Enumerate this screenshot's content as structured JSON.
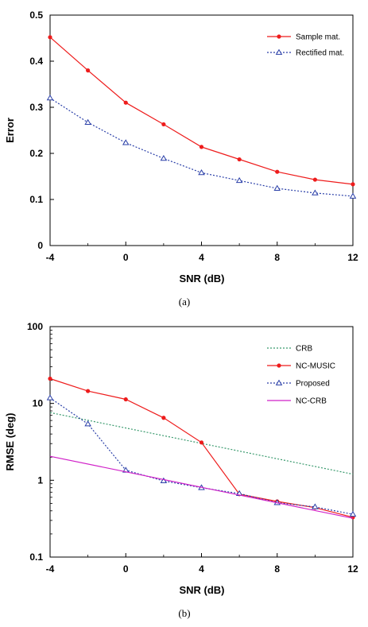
{
  "chart_data": [
    {
      "type": "line",
      "xlabel": "SNR (dB)",
      "ylabel": "Error",
      "caption": "(a)",
      "xlim": [
        -4,
        12
      ],
      "ylim": [
        0,
        0.5
      ],
      "xticks": [
        -4,
        0,
        4,
        8,
        12
      ],
      "yticks": [
        0,
        0.1,
        0.2,
        0.3,
        0.4,
        0.5
      ],
      "ytick_labels": [
        "0",
        "0.1",
        "0.2",
        "0.3",
        "0.4",
        "0.5"
      ],
      "legend_position": "top-right",
      "grid": false,
      "x": [
        -4,
        -2,
        0,
        2,
        4,
        6,
        8,
        10,
        12
      ],
      "series": [
        {
          "name": "Sample mat.",
          "color": "#ee1c1c",
          "style": "solid",
          "marker": "dot",
          "values": [
            0.452,
            0.38,
            0.31,
            0.263,
            0.214,
            0.187,
            0.16,
            0.143,
            0.133
          ]
        },
        {
          "name": "Rectified mat.",
          "color": "#2a3fa8",
          "style": "dotted",
          "marker": "triangle",
          "values": [
            0.32,
            0.267,
            0.223,
            0.189,
            0.158,
            0.141,
            0.124,
            0.114,
            0.107
          ]
        }
      ]
    },
    {
      "type": "line",
      "xlabel": "SNR (dB)",
      "ylabel": "RMSE (deg)",
      "caption": "(b)",
      "yscale": "log",
      "xlim": [
        -4,
        12
      ],
      "ylim": [
        0.1,
        100
      ],
      "xticks": [
        -4,
        0,
        4,
        8,
        12
      ],
      "yticks": [
        0.1,
        1,
        10,
        100
      ],
      "ytick_labels": [
        "0.1",
        "1",
        "10",
        "100"
      ],
      "legend_position": "top-right",
      "grid": false,
      "series": [
        {
          "name": "CRB",
          "color": "#3a9a6e",
          "style": "dotted",
          "marker": "none",
          "x": [
            -4,
            12
          ],
          "values": [
            7.6,
            1.2
          ]
        },
        {
          "name": "NC-MUSIC",
          "color": "#ee1c1c",
          "style": "solid",
          "marker": "dot",
          "x": [
            -4,
            -2,
            0,
            2,
            4,
            6,
            8,
            10,
            12
          ],
          "values": [
            21,
            14.5,
            11.3,
            6.5,
            3.1,
            0.66,
            0.53,
            0.44,
            0.33
          ]
        },
        {
          "name": "Proposed",
          "color": "#2a3fa8",
          "style": "dotted",
          "marker": "triangle",
          "x": [
            -4,
            -2,
            0,
            2,
            4,
            6,
            8,
            10,
            12
          ],
          "values": [
            11.8,
            5.4,
            1.35,
            0.98,
            0.8,
            0.67,
            0.51,
            0.45,
            0.36
          ]
        },
        {
          "name": "NC-CRB",
          "color": "#d020c8",
          "style": "solid",
          "marker": "none",
          "x": [
            -4,
            12
          ],
          "values": [
            2.05,
            0.32
          ]
        }
      ]
    }
  ]
}
